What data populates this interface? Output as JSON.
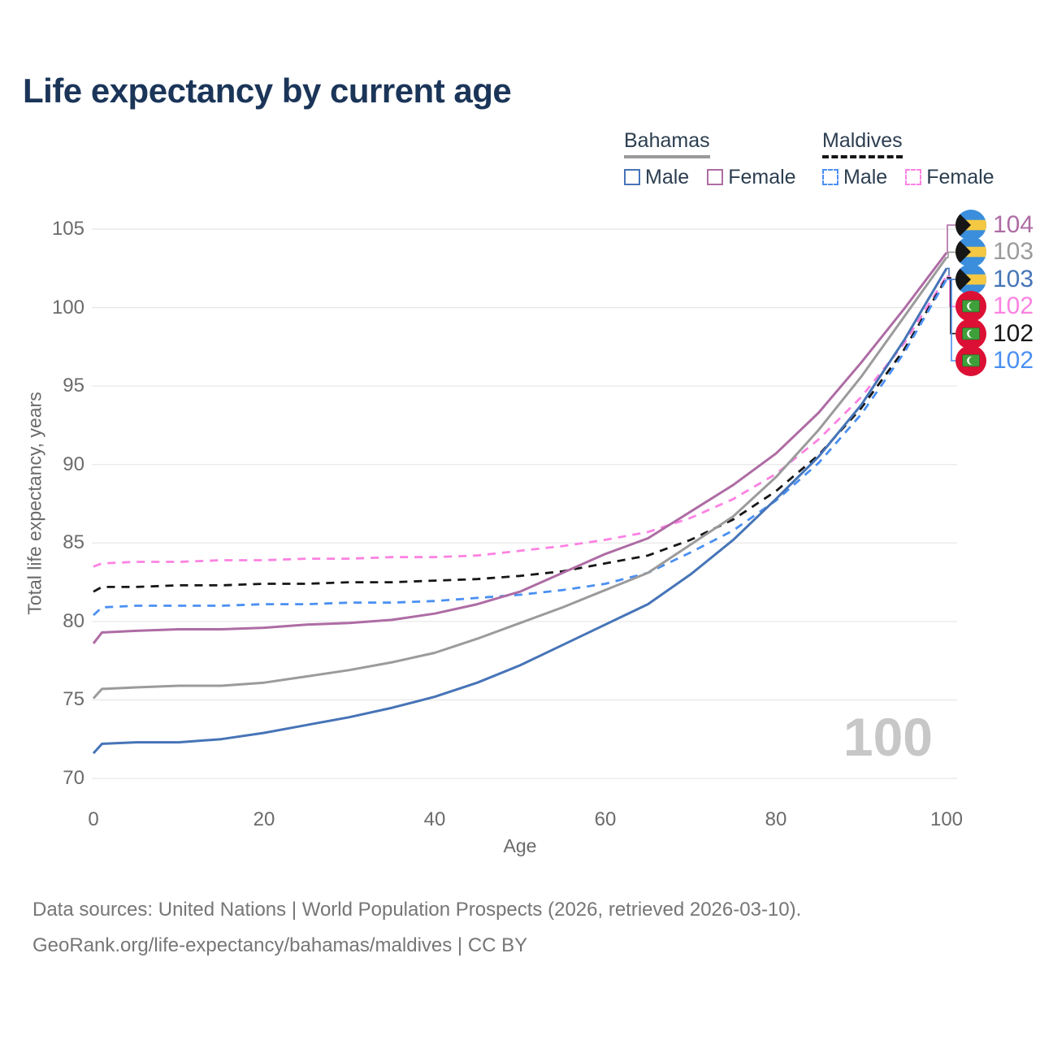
{
  "chart_data": {
    "type": "line",
    "title": "Life expectancy by current age",
    "xlabel": "Age",
    "ylabel": "Total life expectancy, years",
    "xlim": [
      0,
      100
    ],
    "ylim": [
      70,
      105
    ],
    "xticks": [
      0,
      20,
      40,
      60,
      80,
      100
    ],
    "yticks": [
      70,
      75,
      80,
      85,
      90,
      95,
      100,
      105
    ],
    "grid": "horizontal",
    "watermark": "100",
    "x": [
      0,
      1,
      5,
      10,
      15,
      20,
      25,
      30,
      35,
      40,
      45,
      50,
      55,
      60,
      65,
      70,
      75,
      80,
      85,
      90,
      95,
      100
    ],
    "series": [
      {
        "id": "bahamas-male",
        "name": "Bahamas Male",
        "country": "bahamas",
        "style": "solid",
        "color": "#4674b7",
        "values": [
          71.6,
          72.2,
          72.3,
          72.3,
          72.5,
          72.9,
          73.4,
          73.9,
          74.5,
          75.2,
          76.1,
          77.2,
          78.5,
          79.8,
          81.1,
          83.0,
          85.2,
          87.8,
          90.5,
          93.8,
          97.9,
          102.5
        ]
      },
      {
        "id": "bahamas-female",
        "name": "Bahamas Female",
        "country": "bahamas",
        "style": "solid",
        "color": "#ae6ca4",
        "values": [
          78.6,
          79.3,
          79.4,
          79.5,
          79.5,
          79.6,
          79.8,
          79.9,
          80.1,
          80.5,
          81.1,
          81.9,
          83.1,
          84.3,
          85.3,
          87.0,
          88.7,
          90.7,
          93.3,
          96.5,
          99.9,
          103.5
        ]
      },
      {
        "id": "bahamas-total",
        "name": "Bahamas",
        "country": "bahamas",
        "style": "solid",
        "color": "#9b9b9b",
        "values": [
          75.1,
          75.7,
          75.8,
          75.9,
          75.9,
          76.1,
          76.5,
          76.9,
          77.4,
          78.0,
          78.9,
          79.9,
          80.9,
          82.0,
          83.1,
          84.9,
          86.7,
          89.2,
          92.2,
          95.6,
          99.4,
          103.2
        ]
      },
      {
        "id": "maldives-male",
        "name": "Maldives Male",
        "country": "maldives",
        "style": "dashed",
        "color": "#4a90f2",
        "values": [
          80.4,
          80.9,
          81.0,
          81.0,
          81.0,
          81.1,
          81.1,
          81.2,
          81.2,
          81.3,
          81.5,
          81.7,
          82.0,
          82.4,
          83.1,
          84.4,
          85.8,
          87.7,
          90.1,
          93.2,
          97.1,
          101.8
        ]
      },
      {
        "id": "maldives-female",
        "name": "Maldives Female",
        "country": "maldives",
        "style": "dashed",
        "color": "#fc82e2",
        "values": [
          83.5,
          83.7,
          83.8,
          83.8,
          83.9,
          83.9,
          84.0,
          84.0,
          84.1,
          84.1,
          84.2,
          84.5,
          84.8,
          85.2,
          85.7,
          86.6,
          87.8,
          89.4,
          91.6,
          94.3,
          97.7,
          102.0
        ]
      },
      {
        "id": "maldives-total",
        "name": "Maldives",
        "country": "maldives",
        "style": "dashed",
        "color": "#161616",
        "values": [
          81.9,
          82.2,
          82.2,
          82.3,
          82.3,
          82.4,
          82.4,
          82.5,
          82.5,
          82.6,
          82.7,
          82.9,
          83.2,
          83.7,
          84.2,
          85.2,
          86.5,
          88.3,
          90.6,
          93.6,
          97.3,
          101.9
        ]
      }
    ],
    "end_labels": [
      {
        "series": 1,
        "label": "104"
      },
      {
        "series": 2,
        "label": "103"
      },
      {
        "series": 0,
        "label": "103"
      },
      {
        "series": 4,
        "label": "102"
      },
      {
        "series": 5,
        "label": "102"
      },
      {
        "series": 3,
        "label": "102"
      }
    ],
    "legend_position": "top-right"
  },
  "legend": {
    "groups": [
      {
        "title": "Bahamas",
        "underline": "solid",
        "items": [
          {
            "label": "Male",
            "color": "#4674b7",
            "dash": false
          },
          {
            "label": "Female",
            "color": "#ae6ca4",
            "dash": false
          }
        ]
      },
      {
        "title": "Maldives",
        "underline": "dashed",
        "items": [
          {
            "label": "Male",
            "color": "#4a90f2",
            "dash": true
          },
          {
            "label": "Female",
            "color": "#fc82e2",
            "dash": true
          }
        ]
      }
    ]
  },
  "flags": {
    "bahamas": {
      "aquamarine": "#3a8edc",
      "gold": "#f4c843",
      "black": "#161616"
    },
    "maldives": {
      "red": "#dc1035",
      "green": "#3f9f3a",
      "crescent": "#ffffff"
    }
  },
  "colors": {
    "title": "#1b3559",
    "gridline": "#e8e8e8",
    "tick_text": "#6b6b6b",
    "watermark": "#c7c7c7",
    "footer_text": "#767676"
  },
  "footer": {
    "line1": "Data sources: United Nations | World Population Prospects (2026, retrieved 2026-03-10).",
    "line2": "GeoRank.org/life-expectancy/bahamas/maldives | CC BY"
  }
}
